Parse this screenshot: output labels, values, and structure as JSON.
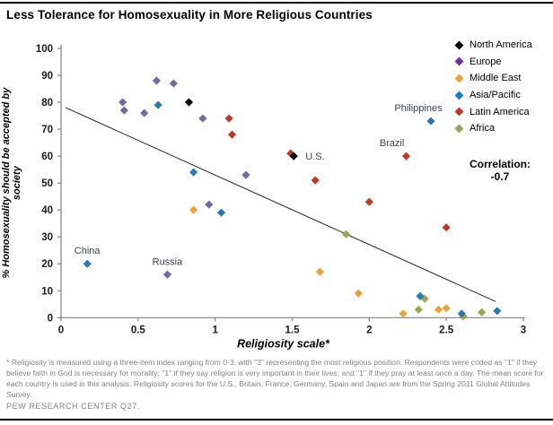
{
  "title": "Less Tolerance for Homosexuality in More Religious Countries",
  "legend": {
    "items": [
      {
        "label": "North America",
        "color": "#000000"
      },
      {
        "label": "Europe",
        "color": "#7030A0"
      },
      {
        "label": "Middle East",
        "color": "#E9A23B"
      },
      {
        "label": "Asia/Pacific",
        "color": "#1F7EC2"
      },
      {
        "label": "Latin America",
        "color": "#BE3A26"
      },
      {
        "label": "Africa",
        "color": "#9AA551"
      }
    ]
  },
  "correlation": {
    "label": "Correlation:",
    "value": "-0.7"
  },
  "chart_data": {
    "type": "scatter",
    "title": "Less Tolerance for Homosexuality in More Religious Countries",
    "xlabel": "Religiosity scale*",
    "ylabel": "% Homosexuality should be accepted by society",
    "ylabel_lines": [
      "% Homosexuality should be accepted by",
      "society"
    ],
    "xlim": [
      0,
      3
    ],
    "ylim": [
      0,
      100
    ],
    "xticks": [
      "0",
      "0.5",
      "1",
      "1.5",
      "2",
      "2.5",
      "3"
    ],
    "yticks": [
      "0",
      "10",
      "20",
      "30",
      "40",
      "50",
      "60",
      "70",
      "80",
      "90",
      "100"
    ],
    "grid": false,
    "legend_position": "top-right",
    "series": [
      {
        "name": "North America",
        "color": "#000000",
        "points": [
          {
            "x": 0.83,
            "y": 80
          },
          {
            "x": 1.51,
            "y": 60,
            "label": "U.S.",
            "dx": 13,
            "dy": 4,
            "anchor": "start"
          }
        ]
      },
      {
        "name": "Europe",
        "color": "#7568A0",
        "points": [
          {
            "x": 0.4,
            "y": 80
          },
          {
            "x": 0.41,
            "y": 77
          },
          {
            "x": 0.54,
            "y": 76
          },
          {
            "x": 0.62,
            "y": 88
          },
          {
            "x": 0.73,
            "y": 87
          },
          {
            "x": 0.92,
            "y": 74
          },
          {
            "x": 0.96,
            "y": 42
          },
          {
            "x": 1.2,
            "y": 53
          },
          {
            "x": 0.69,
            "y": 16,
            "label": "Russia",
            "dx": 0,
            "dy": -11,
            "anchor": "middle"
          }
        ]
      },
      {
        "name": "Middle East",
        "color": "#E9A23B",
        "points": [
          {
            "x": 0.86,
            "y": 40
          },
          {
            "x": 1.68,
            "y": 17
          },
          {
            "x": 1.93,
            "y": 9
          },
          {
            "x": 2.22,
            "y": 1.5
          },
          {
            "x": 2.45,
            "y": 3
          },
          {
            "x": 2.5,
            "y": 3.5
          }
        ]
      },
      {
        "name": "Asia/Pacific",
        "color": "#2B77B3",
        "points": [
          {
            "x": 0.17,
            "y": 20,
            "label": "China",
            "dx": 0,
            "dy": -11,
            "anchor": "middle"
          },
          {
            "x": 0.63,
            "y": 79
          },
          {
            "x": 0.86,
            "y": 54
          },
          {
            "x": 1.04,
            "y": 39
          },
          {
            "x": 2.4,
            "y": 73,
            "label": "Philippines",
            "dx": -14,
            "dy": -11,
            "anchor": "middle"
          },
          {
            "x": 2.33,
            "y": 8
          },
          {
            "x": 2.6,
            "y": 1.5
          },
          {
            "x": 2.83,
            "y": 2.5
          }
        ]
      },
      {
        "name": "Latin America",
        "color": "#BE3A26",
        "points": [
          {
            "x": 1.09,
            "y": 74
          },
          {
            "x": 1.11,
            "y": 68
          },
          {
            "x": 1.49,
            "y": 61
          },
          {
            "x": 1.65,
            "y": 51
          },
          {
            "x": 2.0,
            "y": 43
          },
          {
            "x": 2.24,
            "y": 60,
            "label": "Brazil",
            "dx": -16,
            "dy": -11,
            "anchor": "middle"
          },
          {
            "x": 2.5,
            "y": 33.5
          }
        ]
      },
      {
        "name": "Africa",
        "color": "#9AA551",
        "points": [
          {
            "x": 1.85,
            "y": 31
          },
          {
            "x": 2.32,
            "y": 3
          },
          {
            "x": 2.36,
            "y": 7
          },
          {
            "x": 2.61,
            "y": 0.5
          },
          {
            "x": 2.73,
            "y": 2
          }
        ]
      },
      {
        "name": "trend",
        "type": "trendline",
        "color": "#222222",
        "points": [
          {
            "x": 0.03,
            "y": 78
          },
          {
            "x": 2.82,
            "y": 6
          }
        ]
      }
    ]
  },
  "footnote": "* Religiosity is measured using a three-item index ranging from 0-3, with \"3\" representing the most religious position. Respondents were coded as \"1\" if they believe faith in God is necessary for morality; \"1\" if they say religion is very important in their lives; and \"1\" if they pray at least once a day. The mean score for each country is used in this analysis. Religiosity scores for the U.S., Britain, France, Germany, Spain and Japan are from the Spring 2011 Global Attitudes Survey.",
  "source": "PEW RESEARCH CENTER Q27."
}
